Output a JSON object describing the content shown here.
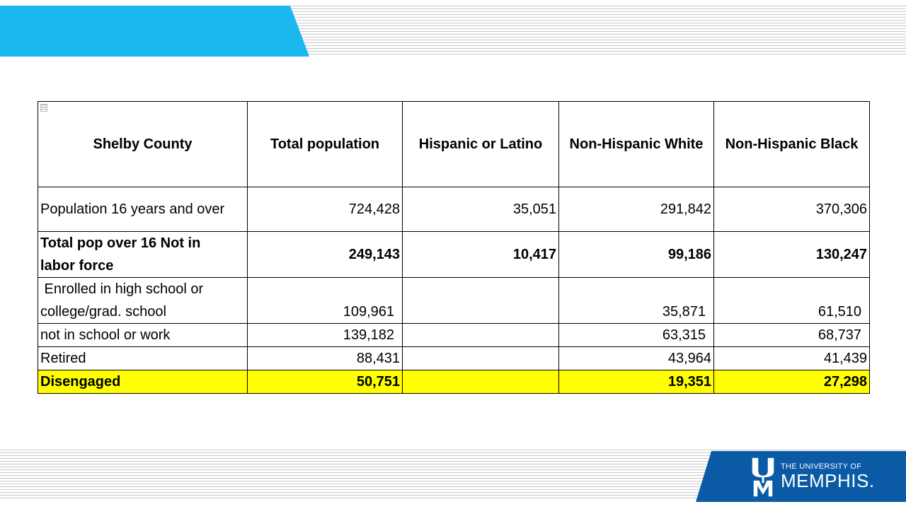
{
  "table": {
    "headers": [
      "Shelby County",
      "Total population",
      "Hispanic or Latino",
      "Non-Hispanic White",
      "Non-Hispanic Black"
    ],
    "rows": [
      {
        "label": "Population 16 years and over",
        "values": [
          "724,428",
          "35,051",
          "291,842",
          "370,306"
        ]
      },
      {
        "label_line1": "Total pop over 16 Not in",
        "label_line2": "labor force",
        "values": [
          "249,143",
          "10,417",
          "99,186",
          "130,247"
        ]
      },
      {
        "label_line1": " Enrolled in high school or",
        "label_line2": "college/grad. school",
        "values": [
          "109,961",
          "",
          "35,871",
          "61,510"
        ]
      },
      {
        "label": "not in school or work",
        "values": [
          "139,182",
          "",
          "63,315",
          "68,737"
        ]
      },
      {
        "label": "Retired",
        "values": [
          "88,431",
          "",
          "43,964",
          "41,439"
        ]
      },
      {
        "label": "Disengaged",
        "values": [
          "50,751",
          "",
          "19,351",
          "27,298"
        ]
      }
    ]
  },
  "logo": {
    "line1": "THE UNIVERSITY OF",
    "line2": "MEMPHIS.",
    "mark_letters": "UM"
  },
  "colors": {
    "accent_blue": "#1ab8ee",
    "logo_blue": "#0a5aa6",
    "highlight_yellow": "#ffff00"
  }
}
